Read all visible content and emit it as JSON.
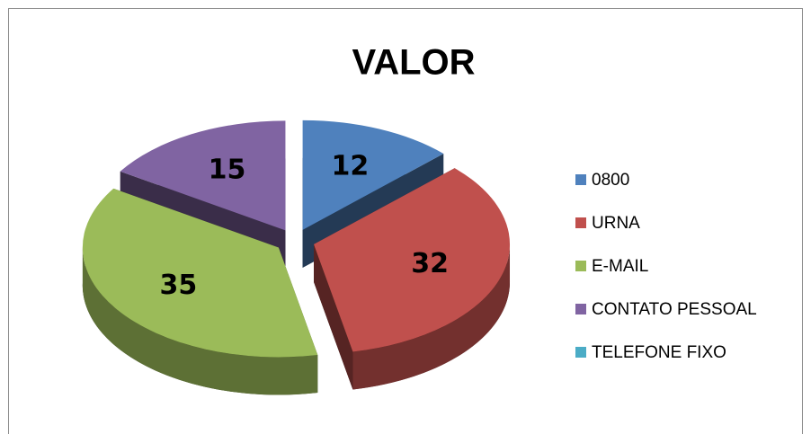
{
  "chart_data": {
    "type": "pie3d",
    "title": "VALOR",
    "categories": [
      "0800",
      "URNA",
      "E-MAIL",
      "CONTATO PESSOAL",
      "TELEFONE FIXO"
    ],
    "values": [
      12,
      32,
      35,
      15,
      0
    ],
    "colors": [
      "#4f81bd",
      "#c0504d",
      "#9bbb59",
      "#8064a2",
      "#4bacc6"
    ],
    "legend": "right",
    "exploded": true
  }
}
